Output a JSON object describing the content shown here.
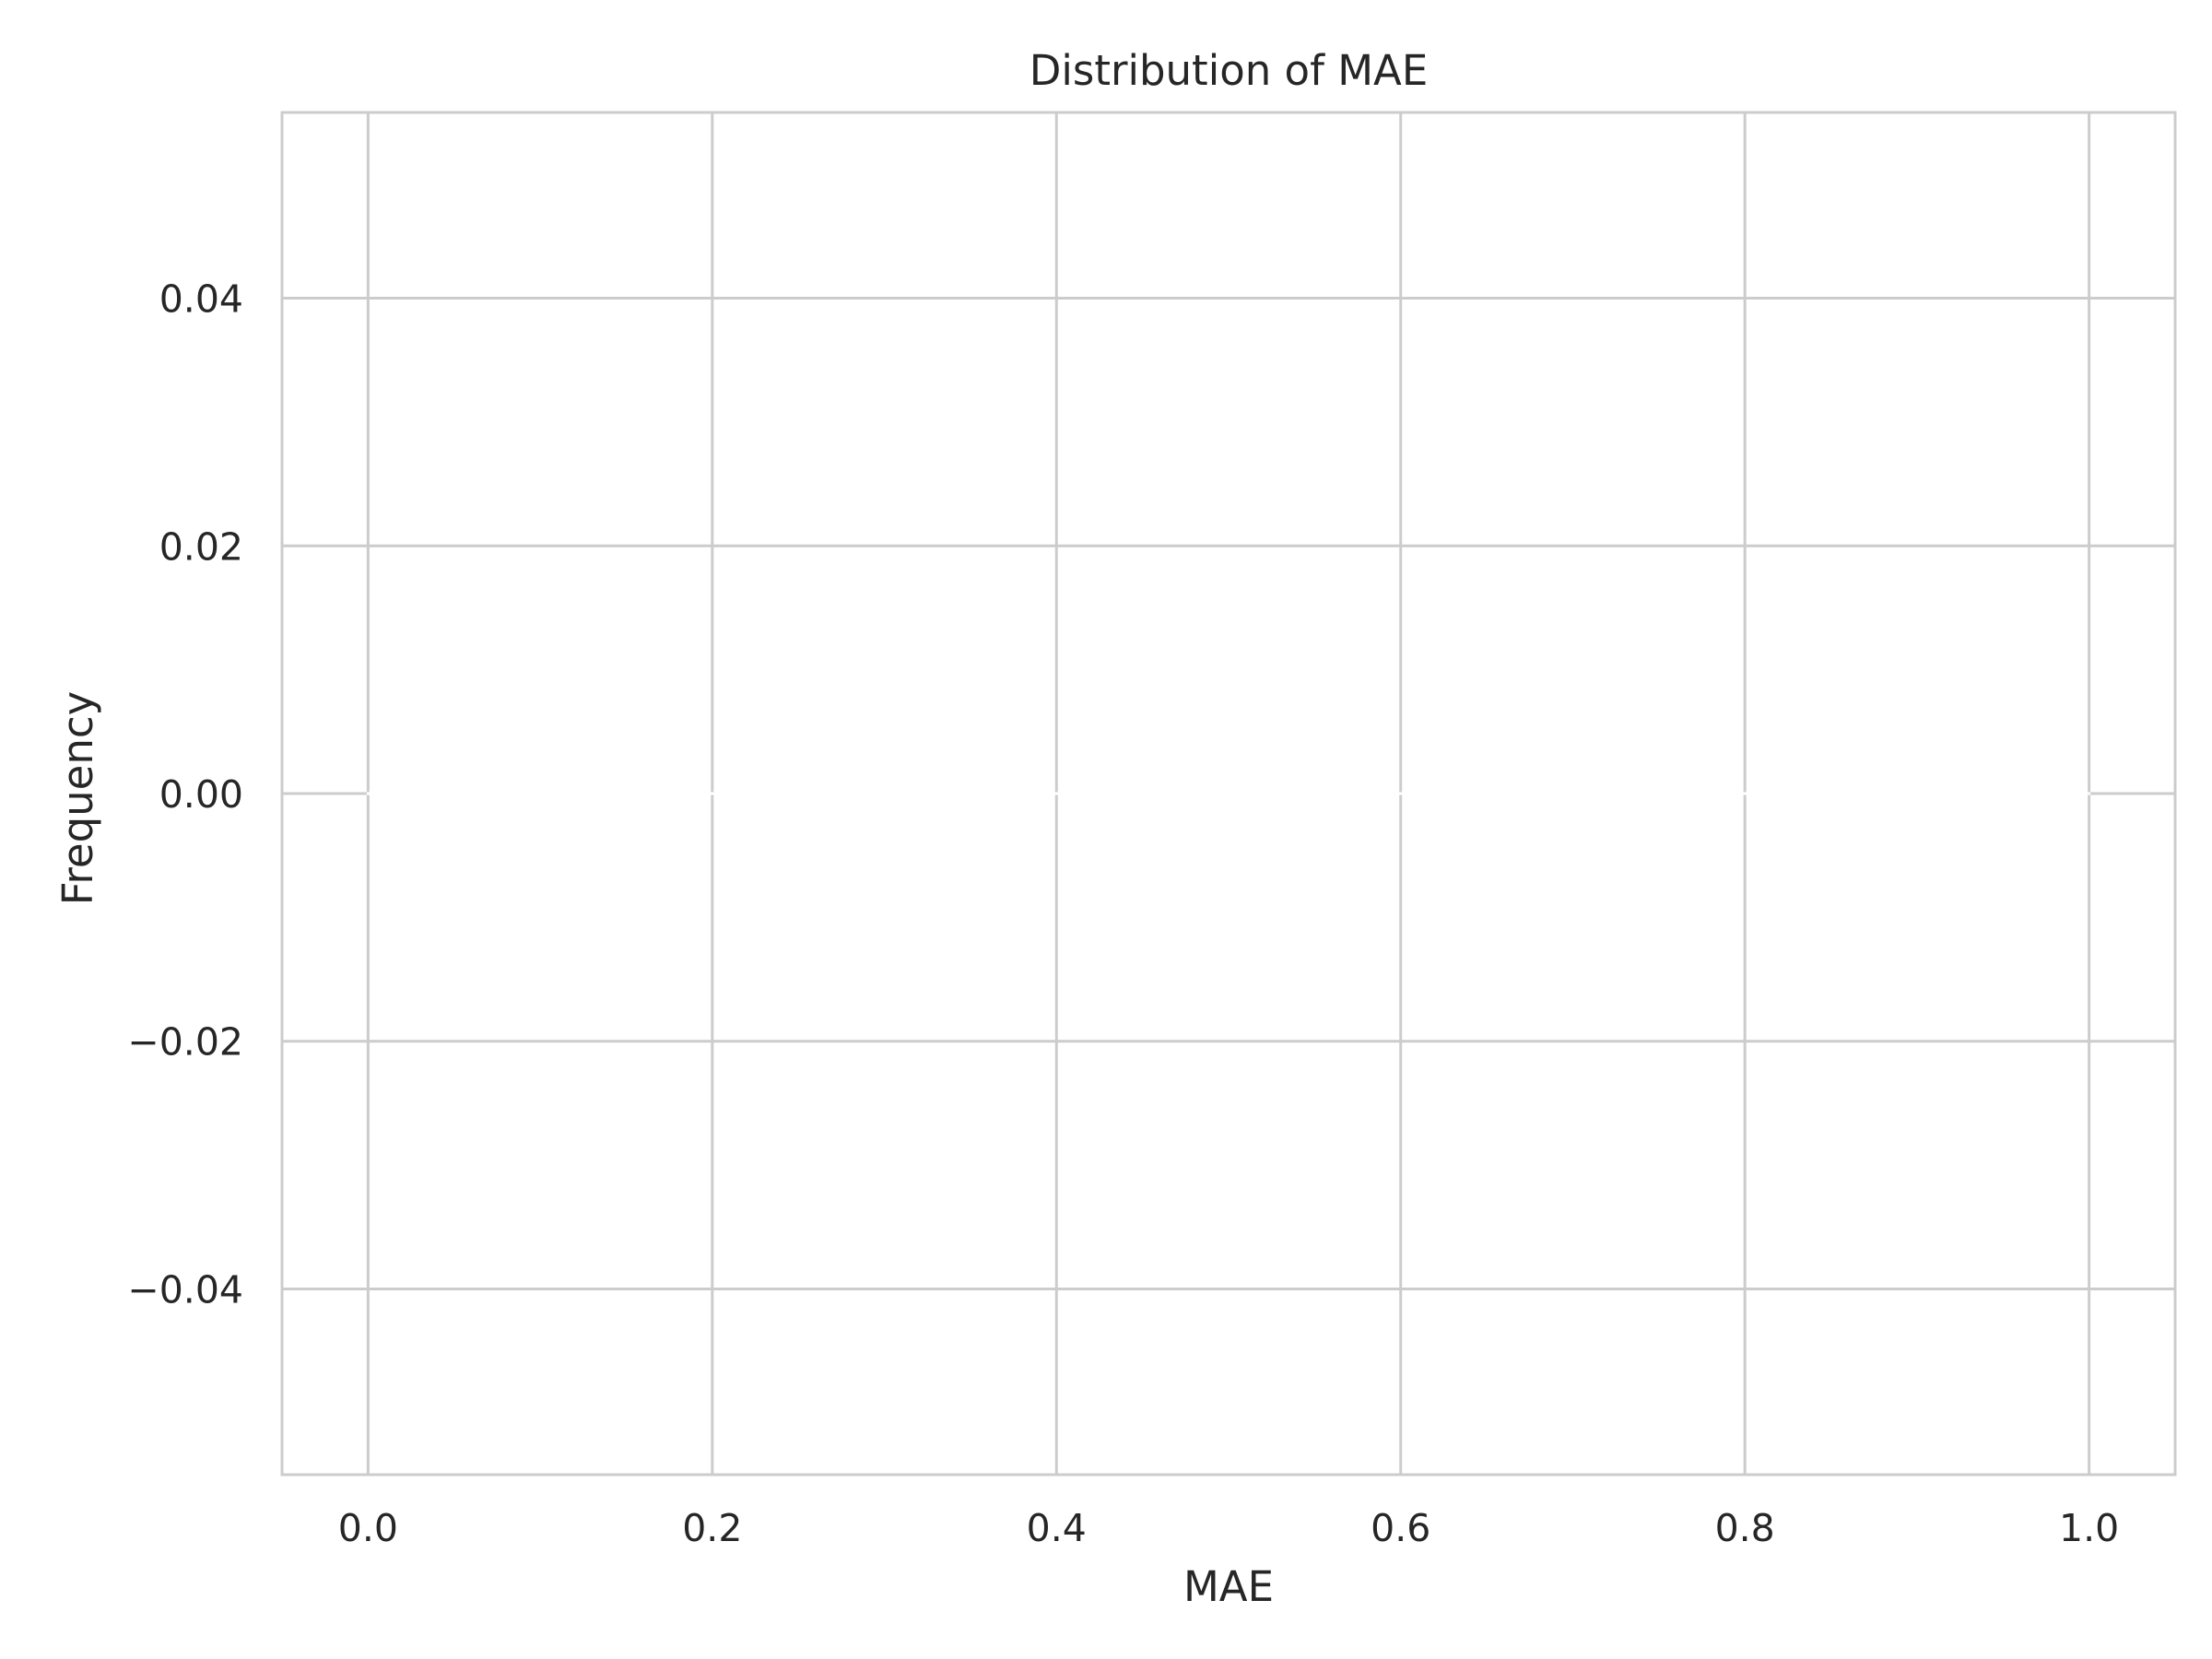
{
  "chart_data": {
    "type": "bar",
    "title": "Distribution of MAE",
    "xlabel": "MAE",
    "ylabel": "Frequency",
    "xlim": [
      -0.05,
      1.05
    ],
    "ylim": [
      -0.055,
      0.055
    ],
    "xticks": [
      0.0,
      0.2,
      0.4,
      0.6,
      0.8,
      1.0
    ],
    "xtick_labels": [
      "0.0",
      "0.2",
      "0.4",
      "0.6",
      "0.8",
      "1.0"
    ],
    "yticks": [
      -0.04,
      -0.02,
      0.0,
      0.02,
      0.04
    ],
    "ytick_labels": [
      "−0.04",
      "−0.02",
      "0.00",
      "0.02",
      "0.04"
    ],
    "bin_edges": [
      0.0,
      0.2,
      0.4,
      0.6,
      0.8,
      1.0
    ],
    "values": [
      0,
      0,
      0,
      0,
      0
    ],
    "grid": true,
    "legend": "none",
    "colors": {
      "background": "#ffffff",
      "grid": "#cccccc",
      "spine": "#cccccc",
      "text": "#262626",
      "bar_edge": "#ffffff"
    }
  }
}
